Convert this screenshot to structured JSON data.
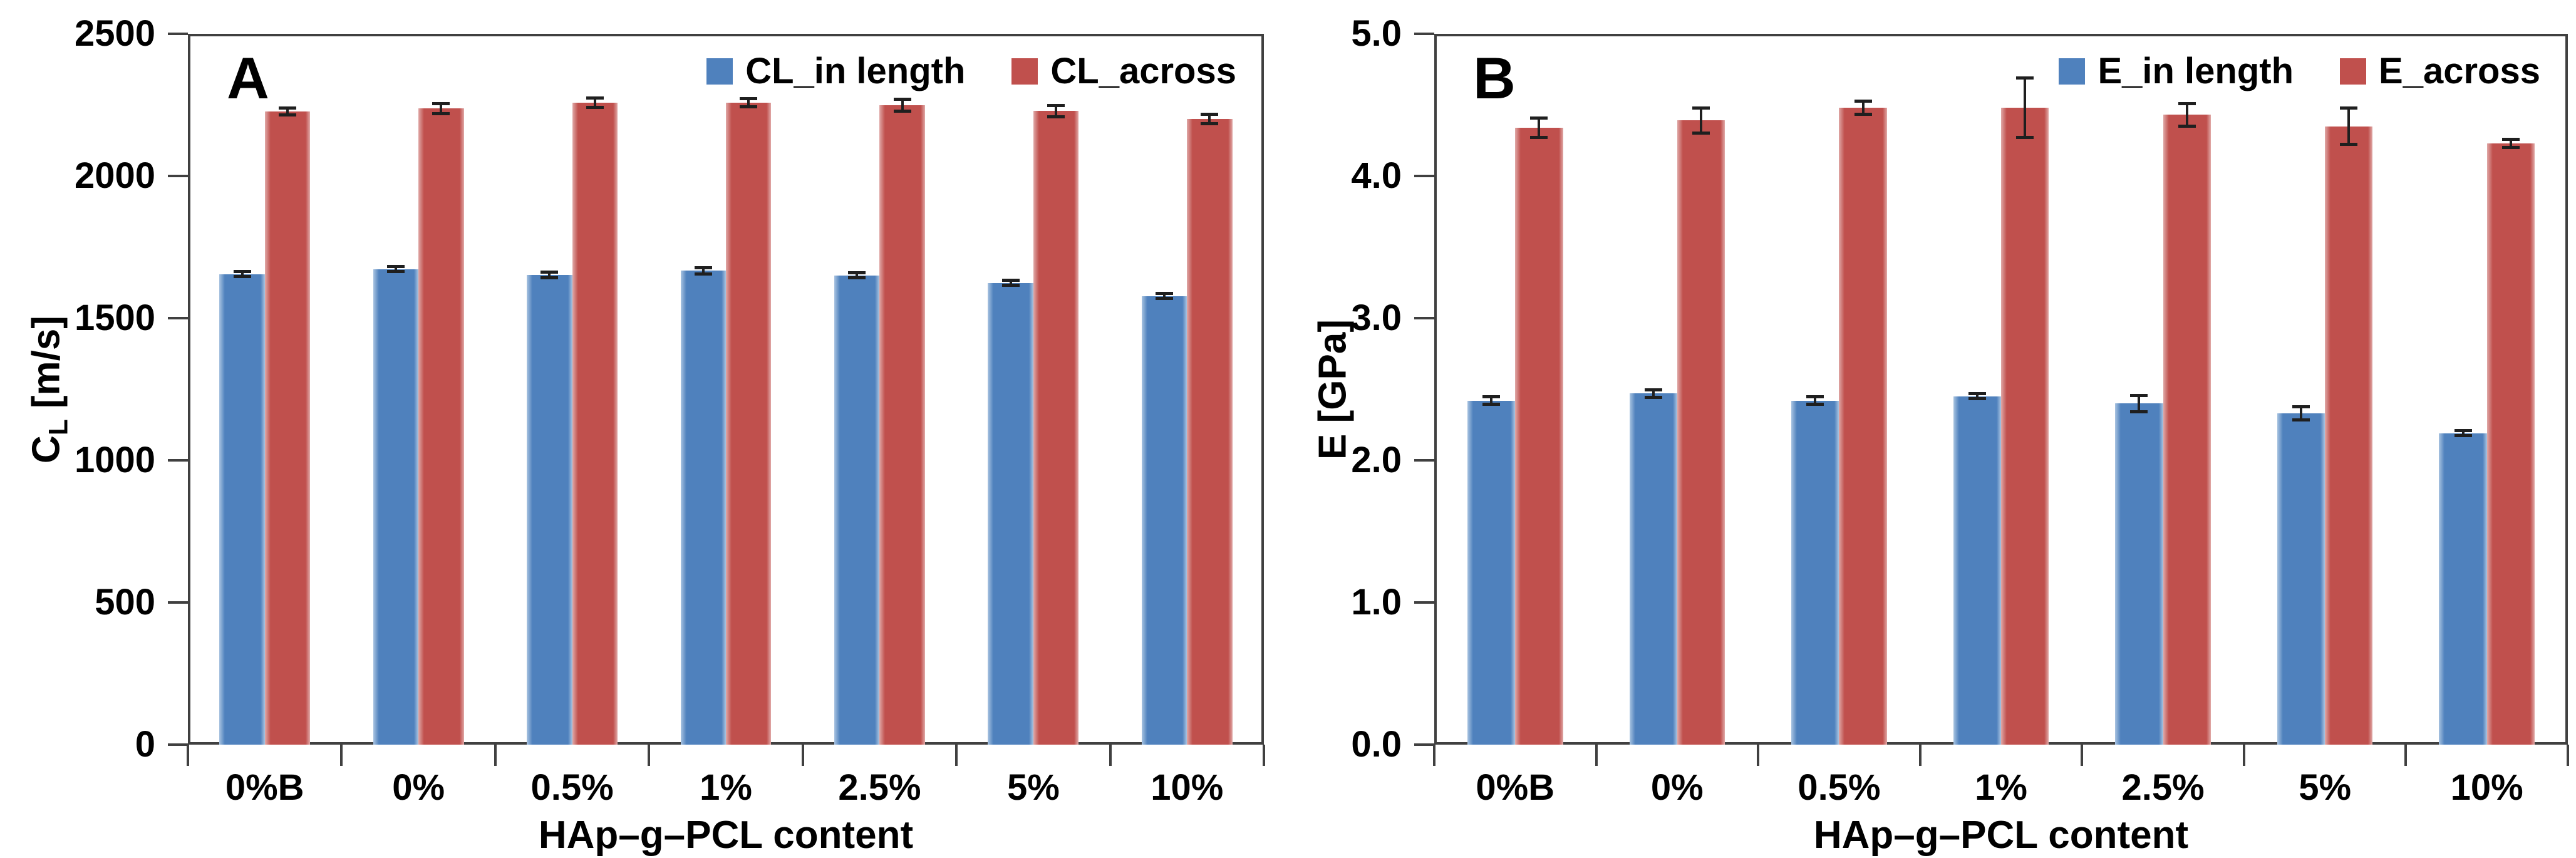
{
  "figure": {
    "background": "#ffffff",
    "text_color": "#000000",
    "axis_line_color": "#404040",
    "error_bar_color": "#1f1f1f",
    "series_colors": {
      "blue": "#4f81bd",
      "red": "#c0504d"
    }
  },
  "chart_data": [
    {
      "type": "bar",
      "panel_label": "A",
      "xlabel": "HAp–g–PCL content",
      "ylabel": {
        "symbol": "C",
        "subscript": "L",
        "unit": " [m/s]"
      },
      "ylim": [
        0,
        2500
      ],
      "ytick_step": 500,
      "ytick_labels": [
        "0",
        "500",
        "1000",
        "1500",
        "2000",
        "2500"
      ],
      "grid": false,
      "legend_position": "top-right-inside",
      "categories": [
        "0%B",
        "0%",
        "0.5%",
        "1%",
        "2.5%",
        "5%",
        "10%"
      ],
      "series": [
        {
          "name": "CL_in length",
          "color": "#4f81bd",
          "edge_color": "#a9c4e1",
          "values": [
            1655,
            1672,
            1652,
            1667,
            1650,
            1624,
            1578
          ],
          "errors": [
            10,
            10,
            12,
            12,
            10,
            10,
            10
          ]
        },
        {
          "name": "CL_across",
          "color": "#c0504d",
          "edge_color": "#e0a9a7",
          "values": [
            2227,
            2237,
            2258,
            2258,
            2248,
            2228,
            2200
          ],
          "errors": [
            13,
            18,
            18,
            16,
            22,
            20,
            18
          ]
        }
      ]
    },
    {
      "type": "bar",
      "panel_label": "B",
      "xlabel": "HAp–g–PCL content",
      "ylabel": {
        "symbol": "E",
        "subscript": "",
        "unit": " [GPa]"
      },
      "ylim": [
        0,
        5
      ],
      "ytick_step": 1,
      "ytick_labels": [
        "0.0",
        "1.0",
        "2.0",
        "3.0",
        "4.0",
        "5.0"
      ],
      "grid": false,
      "legend_position": "top-right-inside",
      "categories": [
        "0%B",
        "0%",
        "0.5%",
        "1%",
        "2.5%",
        "5%",
        "10%"
      ],
      "series": [
        {
          "name": "E_in length",
          "color": "#4f81bd",
          "edge_color": "#a9c4e1",
          "values": [
            2.42,
            2.47,
            2.42,
            2.45,
            2.4,
            2.33,
            2.19
          ],
          "errors": [
            0.03,
            0.03,
            0.03,
            0.02,
            0.06,
            0.05,
            0.02
          ]
        },
        {
          "name": "E_across",
          "color": "#c0504d",
          "edge_color": "#e0a9a7",
          "values": [
            4.34,
            4.39,
            4.48,
            4.48,
            4.43,
            4.35,
            4.23
          ],
          "errors": [
            0.07,
            0.09,
            0.05,
            0.21,
            0.08,
            0.13,
            0.03
          ]
        }
      ]
    }
  ]
}
